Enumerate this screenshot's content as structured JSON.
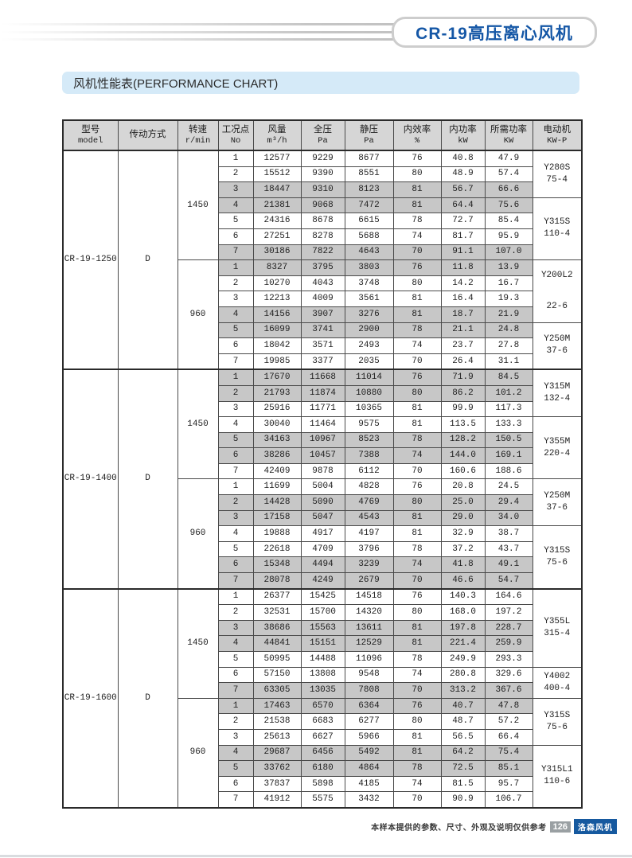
{
  "header": {
    "badge": "CR-19高压离心风机",
    "section_title": "风机性能表(PERFORMANCE CHART)"
  },
  "footer": {
    "disclaimer": "本样本提供的参数、尺寸、外观及说明仅供参考",
    "page_number": "126",
    "brand": "洛森风机"
  },
  "colors": {
    "accent_blue": "#1557a6",
    "title_bar_bg": "#d5eaf8",
    "table_header_bg": "#d6d6d6",
    "row_shade": "#c7c7c7",
    "footer_page_bg": "#9aa0a3",
    "footer_brand_bg": "#16599f"
  },
  "table": {
    "headers": [
      {
        "key": "model",
        "zh": "型号",
        "sub": "model"
      },
      {
        "key": "drive",
        "zh": "传动方式",
        "sub": ""
      },
      {
        "key": "rpm",
        "zh": "转速",
        "sub": "r/min"
      },
      {
        "key": "no",
        "zh": "工况点",
        "sub": "No"
      },
      {
        "key": "flow",
        "zh": "风量",
        "sub": "m³/h"
      },
      {
        "key": "total-pressure",
        "zh": "全压",
        "sub": "Pa"
      },
      {
        "key": "static-pressure",
        "zh": "静压",
        "sub": "Pa"
      },
      {
        "key": "efficiency",
        "zh": "内效率",
        "sub": "%"
      },
      {
        "key": "internal-power",
        "zh": "内功率",
        "sub": "kW"
      },
      {
        "key": "required-power",
        "zh": "所需功率",
        "sub": "KW"
      },
      {
        "key": "motor",
        "zh": "电动机",
        "sub": "KW-P"
      }
    ],
    "groups": [
      {
        "model": "CR-19-1250",
        "drive": "D",
        "speeds": [
          {
            "rpm": "1450",
            "rows": [
              {
                "no": "1",
                "flow": "12577",
                "tp": "9229",
                "sp": "8677",
                "eff": "76",
                "ip": "40.8",
                "rp": "47.9",
                "shaded": false
              },
              {
                "no": "2",
                "flow": "15512",
                "tp": "9390",
                "sp": "8551",
                "eff": "80",
                "ip": "48.9",
                "rp": "57.4",
                "shaded": false
              },
              {
                "no": "3",
                "flow": "18447",
                "tp": "9310",
                "sp": "8123",
                "eff": "81",
                "ip": "56.7",
                "rp": "66.6",
                "shaded": true
              },
              {
                "no": "4",
                "flow": "21381",
                "tp": "9068",
                "sp": "7472",
                "eff": "81",
                "ip": "64.4",
                "rp": "75.6",
                "shaded": true
              },
              {
                "no": "5",
                "flow": "24316",
                "tp": "8678",
                "sp": "6615",
                "eff": "78",
                "ip": "72.7",
                "rp": "85.4",
                "shaded": false
              },
              {
                "no": "6",
                "flow": "27251",
                "tp": "8278",
                "sp": "5688",
                "eff": "74",
                "ip": "81.7",
                "rp": "95.9",
                "shaded": false
              },
              {
                "no": "7",
                "flow": "30186",
                "tp": "7822",
                "sp": "4643",
                "eff": "70",
                "ip": "91.1",
                "rp": "107.0",
                "shaded": true
              }
            ],
            "motors": [
              {
                "lines": [
                  "Y280S",
                  "75-4"
                ],
                "span": 3,
                "wide": false
              },
              {
                "lines": [
                  "Y315S",
                  "110-4"
                ],
                "span": 4,
                "wide": false
              }
            ]
          },
          {
            "rpm": "960",
            "rows": [
              {
                "no": "1",
                "flow": "8327",
                "tp": "3795",
                "sp": "3803",
                "eff": "76",
                "ip": "11.8",
                "rp": "13.9",
                "shaded": true
              },
              {
                "no": "2",
                "flow": "10270",
                "tp": "4043",
                "sp": "3748",
                "eff": "80",
                "ip": "14.2",
                "rp": "16.7",
                "shaded": false
              },
              {
                "no": "3",
                "flow": "12213",
                "tp": "4009",
                "sp": "3561",
                "eff": "81",
                "ip": "16.4",
                "rp": "19.3",
                "shaded": false
              },
              {
                "no": "4",
                "flow": "14156",
                "tp": "3907",
                "sp": "3276",
                "eff": "81",
                "ip": "18.7",
                "rp": "21.9",
                "shaded": true
              },
              {
                "no": "5",
                "flow": "16099",
                "tp": "3741",
                "sp": "2900",
                "eff": "78",
                "ip": "21.1",
                "rp": "24.8",
                "shaded": true
              },
              {
                "no": "6",
                "flow": "18042",
                "tp": "3571",
                "sp": "2493",
                "eff": "74",
                "ip": "23.7",
                "rp": "27.8",
                "shaded": false
              },
              {
                "no": "7",
                "flow": "19985",
                "tp": "3377",
                "sp": "2035",
                "eff": "70",
                "ip": "26.4",
                "rp": "31.1",
                "shaded": false
              }
            ],
            "motors": [
              {
                "lines": [
                  "Y200L2",
                  "22-6"
                ],
                "span": 4,
                "wide": true
              },
              {
                "lines": [
                  "Y250M",
                  "37-6"
                ],
                "span": 3,
                "wide": false
              }
            ]
          }
        ]
      },
      {
        "model": "CR-19-1400",
        "drive": "D",
        "speeds": [
          {
            "rpm": "1450",
            "rows": [
              {
                "no": "1",
                "flow": "17670",
                "tp": "11668",
                "sp": "11014",
                "eff": "76",
                "ip": "71.9",
                "rp": "84.5",
                "shaded": true
              },
              {
                "no": "2",
                "flow": "21793",
                "tp": "11874",
                "sp": "10880",
                "eff": "80",
                "ip": "86.2",
                "rp": "101.2",
                "shaded": true
              },
              {
                "no": "3",
                "flow": "25916",
                "tp": "11771",
                "sp": "10365",
                "eff": "81",
                "ip": "99.9",
                "rp": "117.3",
                "shaded": false
              },
              {
                "no": "4",
                "flow": "30040",
                "tp": "11464",
                "sp": "9575",
                "eff": "81",
                "ip": "113.5",
                "rp": "133.3",
                "shaded": false
              },
              {
                "no": "5",
                "flow": "34163",
                "tp": "10967",
                "sp": "8523",
                "eff": "78",
                "ip": "128.2",
                "rp": "150.5",
                "shaded": true
              },
              {
                "no": "6",
                "flow": "38286",
                "tp": "10457",
                "sp": "7388",
                "eff": "74",
                "ip": "144.0",
                "rp": "169.1",
                "shaded": true
              },
              {
                "no": "7",
                "flow": "42409",
                "tp": "9878",
                "sp": "6112",
                "eff": "70",
                "ip": "160.6",
                "rp": "188.6",
                "shaded": false
              }
            ],
            "motors": [
              {
                "lines": [
                  "Y315M",
                  "132-4"
                ],
                "span": 3,
                "wide": false
              },
              {
                "lines": [
                  "Y355M",
                  "220-4"
                ],
                "span": 4,
                "wide": false
              }
            ]
          },
          {
            "rpm": "960",
            "rows": [
              {
                "no": "1",
                "flow": "11699",
                "tp": "5004",
                "sp": "4828",
                "eff": "76",
                "ip": "20.8",
                "rp": "24.5",
                "shaded": false
              },
              {
                "no": "2",
                "flow": "14428",
                "tp": "5090",
                "sp": "4769",
                "eff": "80",
                "ip": "25.0",
                "rp": "29.4",
                "shaded": true
              },
              {
                "no": "3",
                "flow": "17158",
                "tp": "5047",
                "sp": "4543",
                "eff": "81",
                "ip": "29.0",
                "rp": "34.0",
                "shaded": true
              },
              {
                "no": "4",
                "flow": "19888",
                "tp": "4917",
                "sp": "4197",
                "eff": "81",
                "ip": "32.9",
                "rp": "38.7",
                "shaded": false
              },
              {
                "no": "5",
                "flow": "22618",
                "tp": "4709",
                "sp": "3796",
                "eff": "78",
                "ip": "37.2",
                "rp": "43.7",
                "shaded": false
              },
              {
                "no": "6",
                "flow": "15348",
                "tp": "4494",
                "sp": "3239",
                "eff": "74",
                "ip": "41.8",
                "rp": "49.1",
                "shaded": true
              },
              {
                "no": "7",
                "flow": "28078",
                "tp": "4249",
                "sp": "2679",
                "eff": "70",
                "ip": "46.6",
                "rp": "54.7",
                "shaded": true
              }
            ],
            "motors": [
              {
                "lines": [
                  "Y250M",
                  "37-6"
                ],
                "span": 3,
                "wide": false
              },
              {
                "lines": [
                  "Y315S",
                  "75-6"
                ],
                "span": 4,
                "wide": false
              }
            ]
          }
        ]
      },
      {
        "model": "CR-19-1600",
        "drive": "D",
        "speeds": [
          {
            "rpm": "1450",
            "rows": [
              {
                "no": "1",
                "flow": "26377",
                "tp": "15425",
                "sp": "14518",
                "eff": "76",
                "ip": "140.3",
                "rp": "164.6",
                "shaded": false
              },
              {
                "no": "2",
                "flow": "32531",
                "tp": "15700",
                "sp": "14320",
                "eff": "80",
                "ip": "168.0",
                "rp": "197.2",
                "shaded": false
              },
              {
                "no": "3",
                "flow": "38686",
                "tp": "15563",
                "sp": "13611",
                "eff": "81",
                "ip": "197.8",
                "rp": "228.7",
                "shaded": true
              },
              {
                "no": "4",
                "flow": "44841",
                "tp": "15151",
                "sp": "12529",
                "eff": "81",
                "ip": "221.4",
                "rp": "259.9",
                "shaded": true
              },
              {
                "no": "5",
                "flow": "50995",
                "tp": "14488",
                "sp": "11096",
                "eff": "78",
                "ip": "249.9",
                "rp": "293.3",
                "shaded": false
              },
              {
                "no": "6",
                "flow": "57150",
                "tp": "13808",
                "sp": "9548",
                "eff": "74",
                "ip": "280.8",
                "rp": "329.6",
                "shaded": false
              },
              {
                "no": "7",
                "flow": "63305",
                "tp": "13035",
                "sp": "7808",
                "eff": "70",
                "ip": "313.2",
                "rp": "367.6",
                "shaded": true
              }
            ],
            "motors": [
              {
                "lines": [
                  "Y355L",
                  "315-4"
                ],
                "span": 5,
                "wide": false
              },
              {
                "lines": [
                  "Y4002",
                  "400-4"
                ],
                "span": 2,
                "wide": false
              }
            ]
          },
          {
            "rpm": "960",
            "rows": [
              {
                "no": "1",
                "flow": "17463",
                "tp": "6570",
                "sp": "6364",
                "eff": "76",
                "ip": "40.7",
                "rp": "47.8",
                "shaded": true
              },
              {
                "no": "2",
                "flow": "21538",
                "tp": "6683",
                "sp": "6277",
                "eff": "80",
                "ip": "48.7",
                "rp": "57.2",
                "shaded": false
              },
              {
                "no": "3",
                "flow": "25613",
                "tp": "6627",
                "sp": "5966",
                "eff": "81",
                "ip": "56.5",
                "rp": "66.4",
                "shaded": false
              },
              {
                "no": "4",
                "flow": "29687",
                "tp": "6456",
                "sp": "5492",
                "eff": "81",
                "ip": "64.2",
                "rp": "75.4",
                "shaded": true
              },
              {
                "no": "5",
                "flow": "33762",
                "tp": "6180",
                "sp": "4864",
                "eff": "78",
                "ip": "72.5",
                "rp": "85.1",
                "shaded": true
              },
              {
                "no": "6",
                "flow": "37837",
                "tp": "5898",
                "sp": "4185",
                "eff": "74",
                "ip": "81.5",
                "rp": "95.7",
                "shaded": false
              },
              {
                "no": "7",
                "flow": "41912",
                "tp": "5575",
                "sp": "3432",
                "eff": "70",
                "ip": "90.9",
                "rp": "106.7",
                "shaded": false
              }
            ],
            "motors": [
              {
                "lines": [
                  "Y315S",
                  "75-6"
                ],
                "span": 3,
                "wide": false
              },
              {
                "lines": [
                  "Y315L1",
                  "110-6"
                ],
                "span": 4,
                "wide": false
              }
            ]
          }
        ]
      }
    ]
  }
}
